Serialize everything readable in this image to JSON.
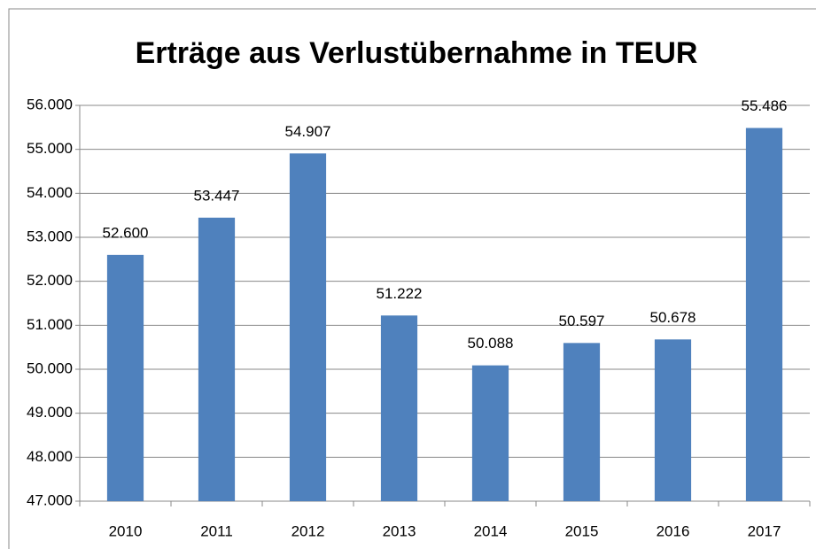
{
  "chart_data": {
    "type": "bar",
    "title": "Erträge aus Verlustübernahme in TEUR",
    "categories": [
      "2010",
      "2011",
      "2012",
      "2013",
      "2014",
      "2015",
      "2016",
      "2017"
    ],
    "values": [
      52600,
      53447,
      54907,
      51222,
      50088,
      50597,
      50678,
      55486
    ],
    "value_labels": [
      "52.600",
      "53.447",
      "54.907",
      "51.222",
      "50.088",
      "50.597",
      "50.678",
      "55.486"
    ],
    "color": "#4f81bd",
    "ylim": [
      47000,
      56000
    ],
    "yticks": [
      {
        "value": 47000,
        "label": "47.000"
      },
      {
        "value": 48000,
        "label": "48.000"
      },
      {
        "value": 49000,
        "label": "49.000"
      },
      {
        "value": 50000,
        "label": "50.000"
      },
      {
        "value": 51000,
        "label": "51.000"
      },
      {
        "value": 52000,
        "label": "52.000"
      },
      {
        "value": 53000,
        "label": "53.000"
      },
      {
        "value": 54000,
        "label": "54.000"
      },
      {
        "value": 55000,
        "label": "55.000"
      },
      {
        "value": 56000,
        "label": "56.000"
      }
    ],
    "grid": true
  }
}
